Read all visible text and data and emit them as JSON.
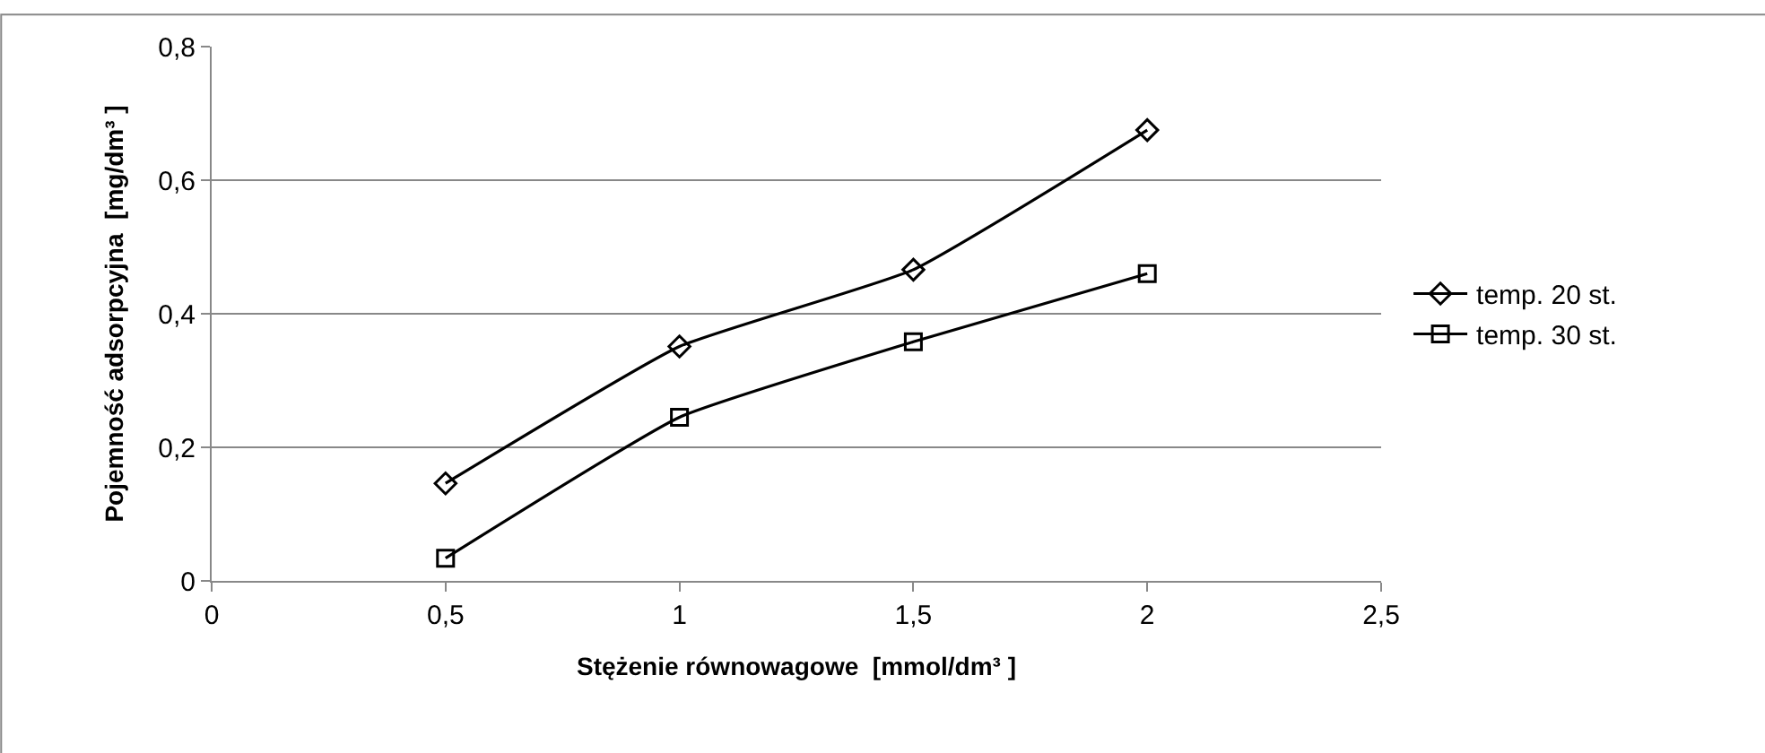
{
  "chart_data": {
    "type": "line",
    "xlabel": "Stężenie równowagowe  [mmol/dm³ ]",
    "ylabel": "Pojemność adsorpcyjna  [mg/dm³ ]",
    "x": [
      0.5,
      1,
      1.5,
      2
    ],
    "series": [
      {
        "name": "temp. 20 st.",
        "color": "#000000",
        "marker": "diamond",
        "values": [
          0.146,
          0.351,
          0.466,
          0.675
        ]
      },
      {
        "name": "temp. 30 st.",
        "color": "#000000",
        "marker": "square",
        "values": [
          0.034,
          0.245,
          0.358,
          0.46
        ]
      }
    ],
    "xlim": [
      0,
      2.5
    ],
    "xticks": [
      0,
      {
        "value": 0.5,
        "label": "0,5"
      },
      1,
      {
        "value": 1.5,
        "label": "1,5"
      },
      2,
      {
        "value": 2.5,
        "label": "2,5"
      }
    ],
    "ylim": [
      0,
      0.8
    ],
    "yticks": [
      0,
      {
        "value": 0.2,
        "label": "0,2"
      },
      {
        "value": 0.4,
        "label": "0,4"
      },
      {
        "value": 0.6,
        "label": "0,6"
      },
      {
        "value": 0.8,
        "label": "0,8"
      }
    ],
    "grid": "y",
    "legend": "right",
    "line_style": "solid"
  }
}
